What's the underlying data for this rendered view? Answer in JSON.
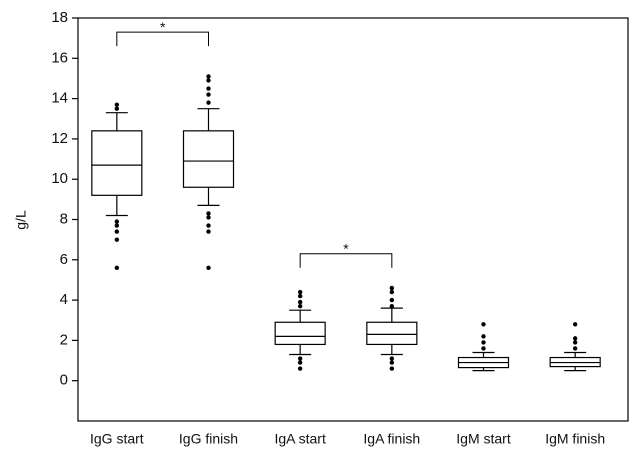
{
  "chart_data": {
    "type": "box",
    "ylabel": "g/L",
    "categories": [
      "IgG start",
      "IgG finish",
      "IgA start",
      "IgA finish",
      "IgM start",
      "IgM finish"
    ],
    "boxes": [
      {
        "low": 8.2,
        "q1": 9.2,
        "median": 10.7,
        "q3": 12.4,
        "high": 13.3,
        "outliers": [
          5.6,
          7.0,
          7.4,
          7.7,
          7.9,
          13.5,
          13.7
        ]
      },
      {
        "low": 8.7,
        "q1": 9.6,
        "median": 10.9,
        "q3": 12.4,
        "high": 13.5,
        "outliers": [
          5.6,
          7.4,
          7.7,
          8.1,
          8.3,
          13.8,
          14.2,
          14.5,
          14.9,
          15.1
        ]
      },
      {
        "low": 1.3,
        "q1": 1.8,
        "median": 2.2,
        "q3": 2.9,
        "high": 3.5,
        "outliers": [
          0.6,
          0.9,
          1.1,
          3.7,
          3.9,
          4.2,
          4.4
        ]
      },
      {
        "low": 1.3,
        "q1": 1.8,
        "median": 2.3,
        "q3": 2.9,
        "high": 3.6,
        "outliers": [
          0.6,
          0.9,
          1.1,
          3.7,
          4.0,
          4.4,
          4.6
        ]
      },
      {
        "low": 0.5,
        "q1": 0.65,
        "median": 0.9,
        "q3": 1.15,
        "high": 1.4,
        "outliers": [
          1.6,
          1.9,
          2.2,
          2.8
        ]
      },
      {
        "low": 0.5,
        "q1": 0.7,
        "median": 0.9,
        "q3": 1.15,
        "high": 1.4,
        "outliers": [
          1.6,
          1.9,
          2.1,
          2.8
        ]
      }
    ],
    "annotations": [
      {
        "text": "*",
        "from": 0,
        "to": 1,
        "y": 17.3
      },
      {
        "text": "*",
        "from": 2,
        "to": 3,
        "y": 6.3
      }
    ],
    "color": "#000000",
    "ylim": [
      -2,
      18
    ],
    "yticks": [
      0,
      2,
      4,
      6,
      8,
      10,
      12,
      14,
      16,
      18
    ],
    "grid": false
  }
}
